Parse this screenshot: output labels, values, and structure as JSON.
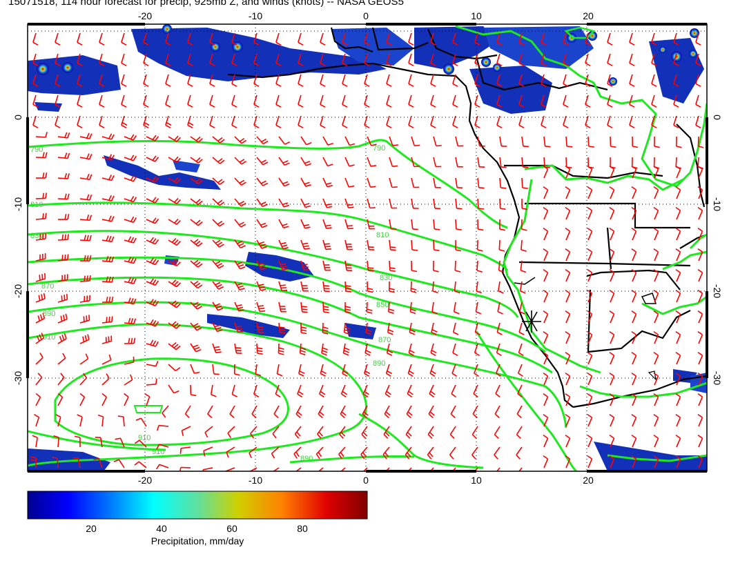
{
  "title": "15071518, 114 hour forecast for precip, 925mb Z, and winds (knots) -- NASA GEOS5",
  "map": {
    "lon_range": [
      -30,
      30
    ],
    "lat_range": [
      -40,
      10
    ],
    "lon_ticks": [
      "-20",
      "-10",
      "0",
      "10",
      "20"
    ],
    "lat_ticks": [
      "0",
      "-10",
      "-20",
      "-30"
    ],
    "contour_levels": [
      "790",
      "810",
      "830",
      "850",
      "870",
      "890",
      "910"
    ],
    "colors": {
      "contours": "#1ee81e",
      "wind_barbs": "#ff0000",
      "coastline": "#000000",
      "precip_low": "#1a1aa0",
      "precip_high": "#8b0000"
    },
    "marker_icon": "asterisk-station-marker"
  },
  "colorbar": {
    "label": "Precipitation, mm/day",
    "ticks": [
      "20",
      "40",
      "60",
      "80"
    ],
    "range": [
      0,
      97
    ]
  }
}
